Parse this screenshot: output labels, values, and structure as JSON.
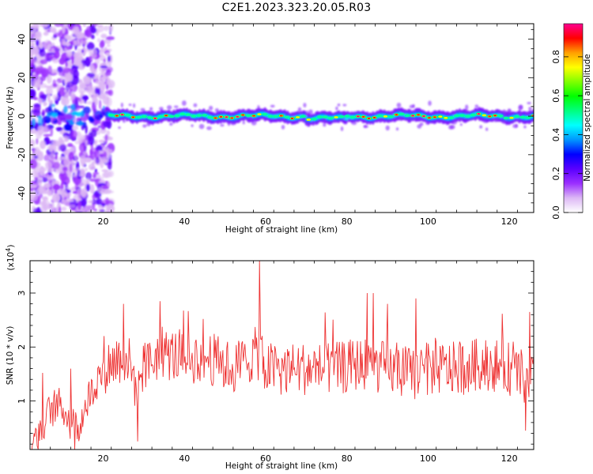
{
  "title": "C2E1.2023.323.20.05.R03",
  "chart_data": [
    {
      "type": "heatmap",
      "xlabel": "Height of straight line (km)",
      "ylabel": "Frequency (Hz)",
      "xlim": [
        2,
        126
      ],
      "ylim": [
        -50,
        48
      ],
      "xticks": [
        20,
        40,
        60,
        80,
        100,
        120
      ],
      "yticks": [
        -40,
        -20,
        0,
        20,
        40
      ],
      "colorbar": {
        "label": "Normalized spectral amplitude",
        "range": [
          0,
          0.97
        ],
        "ticks": [
          "0.0",
          "0.2",
          "0.4",
          "0.6",
          "0.8"
        ],
        "colormap": [
          "#ffffff",
          "#dcb8f5",
          "#9b30ff",
          "#5a00ff",
          "#0000ff",
          "#0096ff",
          "#00ffff",
          "#00ff80",
          "#00ff00",
          "#80ff00",
          "#ffff00",
          "#ffa000",
          "#ff0000",
          "#ff0090"
        ]
      },
      "signal": {
        "description_free": true,
        "broadband_x_ranges": [
          [
            3,
            22
          ]
        ],
        "center_frequency_hz": 0,
        "peak_amplitude": 0.97
      }
    },
    {
      "type": "line",
      "xlabel": "Height of straight line (km)",
      "ylabel": "SNR (10 * v/v)",
      "scale_note": "(x10^4)",
      "scale_base": "(x10",
      "scale_exp": "4",
      "xlim": [
        2,
        126
      ],
      "ylim": [
        0.1,
        3.6
      ],
      "xticks": [
        20,
        40,
        60,
        80,
        100,
        120
      ],
      "yticks": [
        1,
        2,
        3
      ],
      "series": [
        {
          "color": "#ee3333",
          "envelope_points": [
            [
              2,
              0.2
            ],
            [
              5,
              0.6
            ],
            [
              8,
              0.9
            ],
            [
              10,
              0.9
            ],
            [
              12,
              0.6
            ],
            [
              14,
              0.5
            ],
            [
              16,
              1.0
            ],
            [
              18,
              1.3
            ],
            [
              20,
              1.6
            ],
            [
              22,
              1.7
            ],
            [
              24,
              1.8
            ],
            [
              26,
              1.8
            ],
            [
              28,
              1.3
            ],
            [
              30,
              1.6
            ],
            [
              34,
              1.9
            ],
            [
              40,
              1.8
            ],
            [
              46,
              1.8
            ],
            [
              52,
              1.6
            ],
            [
              58,
              1.9
            ],
            [
              60,
              1.6
            ],
            [
              66,
              1.6
            ],
            [
              72,
              1.6
            ],
            [
              78,
              1.6
            ],
            [
              84,
              1.7
            ],
            [
              90,
              1.6
            ],
            [
              96,
              1.5
            ],
            [
              102,
              1.6
            ],
            [
              108,
              1.6
            ],
            [
              114,
              1.7
            ],
            [
              120,
              1.6
            ],
            [
              124,
              1.4
            ],
            [
              126,
              1.5
            ]
          ],
          "peaks": [
            [
              3,
              0.4
            ],
            [
              12,
              1.6
            ],
            [
              25,
              2.8
            ],
            [
              34,
              2.85
            ],
            [
              58.5,
              3.6
            ],
            [
              85,
              3.0
            ],
            [
              86.5,
              3.0
            ],
            [
              90,
              2.8
            ],
            [
              97,
              2.9
            ],
            [
              125,
              2.65
            ]
          ],
          "troughs": [
            [
              4,
              0.1
            ],
            [
              13,
              0.1
            ],
            [
              28.5,
              0.25
            ],
            [
              124,
              0.45
            ]
          ]
        }
      ]
    }
  ]
}
